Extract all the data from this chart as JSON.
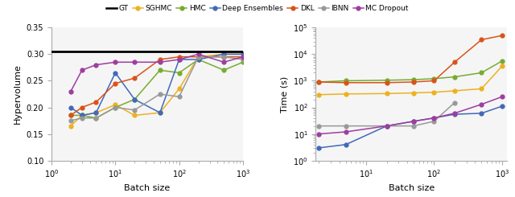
{
  "batch_sizes_left": [
    2,
    3,
    5,
    10,
    20,
    50,
    100,
    200,
    500,
    1000
  ],
  "batch_sizes_right": [
    2,
    5,
    20,
    50,
    100,
    200,
    500,
    1000
  ],
  "hv_GT": 0.305,
  "hv_SGHMC": [
    0.165,
    0.185,
    0.19,
    0.205,
    0.185,
    0.19,
    0.235,
    0.295,
    0.3,
    0.3
  ],
  "hv_HMC": [
    0.185,
    0.185,
    0.18,
    0.2,
    0.215,
    0.27,
    0.265,
    0.29,
    0.27,
    0.285
  ],
  "hv_DE": [
    0.2,
    0.185,
    0.19,
    0.265,
    0.215,
    0.19,
    0.29,
    0.29,
    0.3,
    0.3
  ],
  "hv_DKL": [
    0.185,
    0.2,
    0.21,
    0.245,
    0.255,
    0.29,
    0.295,
    0.295,
    0.295,
    0.295
  ],
  "hv_IBNN": [
    0.175,
    0.18,
    0.18,
    0.2,
    0.195,
    0.225,
    0.22,
    0.295,
    0.295,
    0.29
  ],
  "hv_MCD": [
    0.23,
    0.27,
    0.28,
    0.285,
    0.285,
    0.285,
    0.29,
    0.3,
    0.285,
    0.295
  ],
  "t_SGHMC": [
    300,
    320,
    330,
    350,
    370,
    420,
    500,
    3500
  ],
  "t_HMC": [
    900,
    1000,
    1050,
    1100,
    1200,
    1400,
    2000,
    5500
  ],
  "t_DE": [
    3,
    4,
    20,
    30,
    40,
    55,
    60,
    110
  ],
  "t_DKL": [
    900,
    850,
    850,
    900,
    1000,
    5000,
    35000,
    50000
  ],
  "t_IBNN": [
    20,
    20,
    20,
    20,
    30,
    150,
    null,
    null
  ],
  "t_MCD": [
    10,
    12,
    20,
    30,
    40,
    60,
    130,
    250
  ],
  "colors": {
    "GT": "#000000",
    "SGHMC": "#EDB120",
    "HMC": "#77AC30",
    "DE": "#4169b8",
    "DKL": "#D95319",
    "IBNN": "#999999",
    "MCD": "#9E3DA0"
  },
  "legend_labels": [
    "GT",
    "SGHMC",
    "HMC",
    "Deep Ensembles",
    "DKL",
    "IBNN",
    "MC Dropout"
  ],
  "ylabel_left": "Hypervolume",
  "ylabel_right": "Time (s)",
  "xlabel": "Batch size",
  "ylim_left": [
    0.1,
    0.35
  ],
  "yticks_left": [
    0.1,
    0.15,
    0.2,
    0.25,
    0.3,
    0.35
  ],
  "xlim_left": [
    1,
    1000
  ],
  "xlim_right": [
    1.8,
    1200
  ],
  "ylim_right": [
    1,
    100000
  ],
  "bg_color": "#f5f5f5",
  "fig_color": "#ffffff"
}
